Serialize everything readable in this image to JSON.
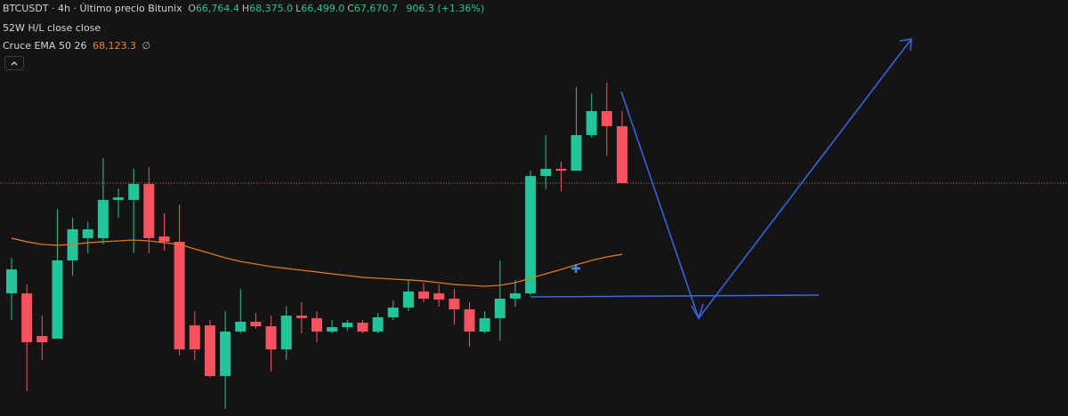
{
  "header": {
    "symbol": "BTCUSDT · 4h · Último precio Bitunix",
    "ohlc": [
      {
        "label": "O",
        "value": "66,764.4"
      },
      {
        "label": "H",
        "value": "68,375.0"
      },
      {
        "label": "L",
        "value": "66,499.0"
      },
      {
        "label": "C",
        "value": "67,670.7"
      }
    ],
    "change": "906.3 (+1.36%)",
    "indicator1": "52W H/L close close",
    "indicator2": {
      "name": "Cruce EMA 50 26",
      "value": "68,123.3",
      "flag": "∅"
    }
  },
  "chart_data": {
    "type": "candlestick",
    "ylim": [
      66038,
      68955
    ],
    "up_color": "#22c59a",
    "down_color": "#f7525f",
    "open": [
      66898,
      66898,
      66599,
      66580,
      67129,
      67285,
      67285,
      67553,
      67553,
      67665,
      67297,
      67260,
      66674,
      66674,
      66318,
      66630,
      66699,
      66667,
      66505,
      66742,
      66724,
      66630,
      66661,
      66692,
      66630,
      66730,
      66798,
      66911,
      66898,
      66861,
      66786,
      66630,
      66724,
      66861,
      66898,
      67721,
      67771,
      67758,
      68008,
      68176,
      68070
    ],
    "high": [
      67147,
      66960,
      66742,
      67490,
      67428,
      67397,
      67846,
      67634,
      67771,
      67783,
      67459,
      67521,
      66773,
      66711,
      66773,
      66929,
      66761,
      66742,
      66805,
      66836,
      66773,
      66711,
      66711,
      66711,
      66761,
      66848,
      66992,
      66973,
      66960,
      66929,
      66836,
      66773,
      67129,
      66992,
      67758,
      68008,
      67821,
      68344,
      68300,
      68375,
      68176
    ],
    "low": [
      66711,
      66212,
      66431,
      66580,
      67023,
      67179,
      67241,
      67428,
      67179,
      67179,
      67197,
      66462,
      66431,
      66306,
      66088,
      66618,
      66649,
      66350,
      66431,
      66618,
      66555,
      66618,
      66636,
      66618,
      66618,
      66711,
      66773,
      66836,
      66805,
      66680,
      66524,
      66618,
      66568,
      66805,
      66886,
      67627,
      67615,
      67758,
      67989,
      67864,
      67671
    ],
    "close": [
      67066,
      66555,
      66555,
      67129,
      67347,
      67347,
      67553,
      67571,
      67665,
      67285,
      67260,
      66505,
      66505,
      66318,
      66630,
      66699,
      66667,
      66505,
      66742,
      66724,
      66630,
      66661,
      66692,
      66630,
      66730,
      66798,
      66911,
      66861,
      66854,
      66786,
      66630,
      66724,
      66861,
      66898,
      67721,
      67771,
      67758,
      68008,
      68176,
      68070,
      67671
    ],
    "ema": {
      "color": "#e07424",
      "values": [
        67285,
        67260,
        67241,
        67235,
        67241,
        67253,
        67260,
        67266,
        67272,
        67266,
        67253,
        67241,
        67210,
        67179,
        67147,
        67122,
        67104,
        67085,
        67073,
        67060,
        67048,
        67035,
        67023,
        67010,
        67004,
        66998,
        66992,
        66985,
        66973,
        66960,
        66954,
        66948,
        66954,
        66973,
        67004,
        67035,
        67066,
        67098,
        67129,
        67154,
        67172
      ]
    }
  }
}
